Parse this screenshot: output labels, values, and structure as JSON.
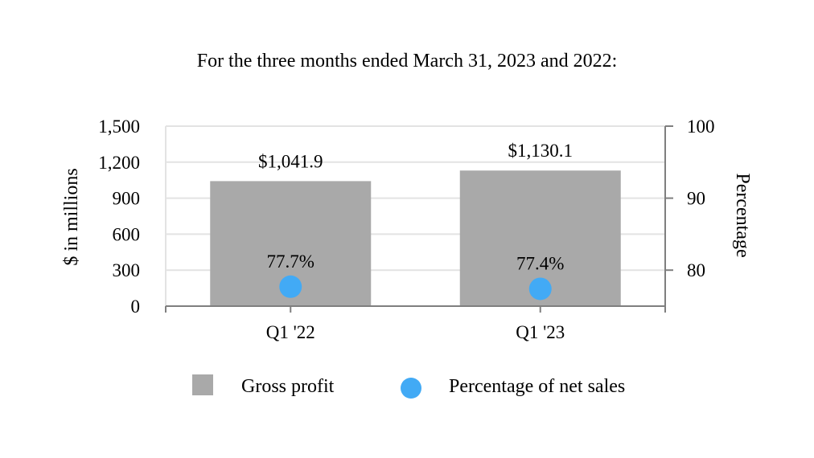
{
  "chart_data": {
    "type": "bar",
    "title": "For the three months ended March 31, 2023 and 2022:",
    "categories": [
      "Q1 '22",
      "Q1 '23"
    ],
    "ylabel": "$ in millions",
    "y2label": "Percentage",
    "ylim": [
      0,
      1500
    ],
    "y2lim": [
      75,
      100
    ],
    "yticks": [
      "0",
      "300",
      "600",
      "900",
      "1,200",
      "1,500"
    ],
    "y2ticks": [
      "80",
      "90",
      "100"
    ],
    "grid": true,
    "legend_position": "bottom",
    "series": [
      {
        "name": "Gross profit",
        "type": "bar",
        "axis": "left",
        "color": "#a9a9a9",
        "values": [
          1041.9,
          1130.1
        ],
        "labels": [
          "$1,041.9",
          "$1,130.1"
        ]
      },
      {
        "name": "Percentage of net sales",
        "type": "scatter",
        "axis": "right",
        "color": "#42aaf5",
        "values": [
          77.7,
          77.4
        ],
        "labels": [
          "77.7%",
          "77.4%"
        ]
      }
    ]
  }
}
